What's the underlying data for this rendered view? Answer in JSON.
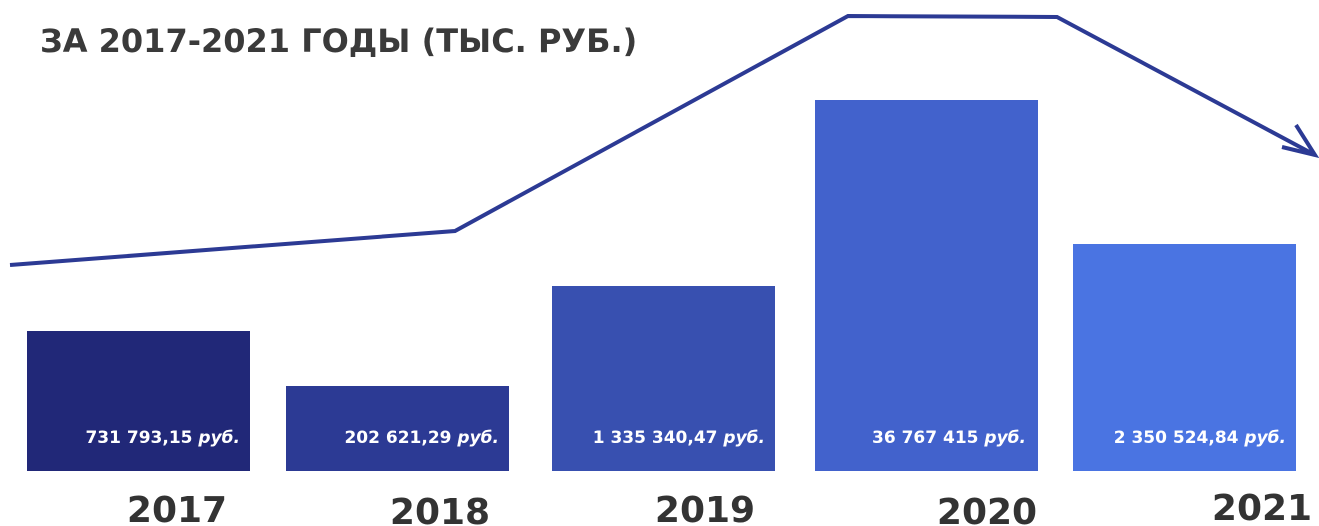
{
  "header": {
    "title": "ЗА 2017-2021 ГОДЫ (ТЫС. РУБ.)"
  },
  "items": [
    {
      "year": "2017",
      "amount": "731 793,15",
      "unit": "руб."
    },
    {
      "year": "2018",
      "amount": "202 621,29",
      "unit": "руб."
    },
    {
      "year": "2019",
      "amount": "1 335 340,47",
      "unit": "руб."
    },
    {
      "year": "2020",
      "amount": "36 767 415",
      "unit": "руб."
    },
    {
      "year": "2021",
      "amount": "2 350 524,84",
      "unit": "руб."
    }
  ]
}
